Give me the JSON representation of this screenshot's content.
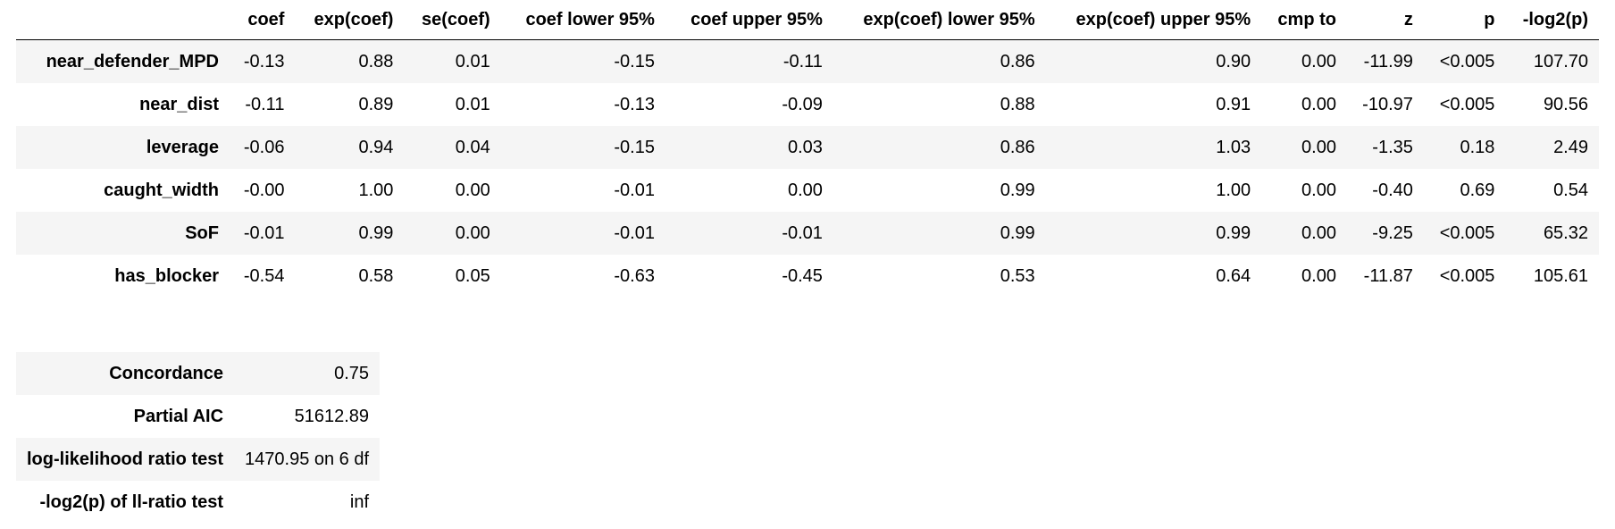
{
  "coef_table": {
    "columns": [
      "",
      "coef",
      "exp(coef)",
      "se(coef)",
      "coef lower 95%",
      "coef upper 95%",
      "exp(coef) lower 95%",
      "exp(coef) upper 95%",
      "cmp to",
      "z",
      "p",
      "-log2(p)"
    ],
    "rows": [
      {
        "name": "near_defender_MPD",
        "values": [
          "-0.13",
          "0.88",
          "0.01",
          "-0.15",
          "-0.11",
          "0.86",
          "0.90",
          "0.00",
          "-11.99",
          "<0.005",
          "107.70"
        ]
      },
      {
        "name": "near_dist",
        "values": [
          "-0.11",
          "0.89",
          "0.01",
          "-0.13",
          "-0.09",
          "0.88",
          "0.91",
          "0.00",
          "-10.97",
          "<0.005",
          "90.56"
        ]
      },
      {
        "name": "leverage",
        "values": [
          "-0.06",
          "0.94",
          "0.04",
          "-0.15",
          "0.03",
          "0.86",
          "1.03",
          "0.00",
          "-1.35",
          "0.18",
          "2.49"
        ]
      },
      {
        "name": "caught_width",
        "values": [
          "-0.00",
          "1.00",
          "0.00",
          "-0.01",
          "0.00",
          "0.99",
          "1.00",
          "0.00",
          "-0.40",
          "0.69",
          "0.54"
        ]
      },
      {
        "name": "SoF",
        "values": [
          "-0.01",
          "0.99",
          "0.00",
          "-0.01",
          "-0.01",
          "0.99",
          "0.99",
          "0.00",
          "-9.25",
          "<0.005",
          "65.32"
        ]
      },
      {
        "name": "has_blocker",
        "values": [
          "-0.54",
          "0.58",
          "0.05",
          "-0.63",
          "-0.45",
          "0.53",
          "0.64",
          "0.00",
          "-11.87",
          "<0.005",
          "105.61"
        ]
      }
    ]
  },
  "summary_table": {
    "rows": [
      {
        "label": "Concordance",
        "value": "0.75"
      },
      {
        "label": "Partial AIC",
        "value": "51612.89"
      },
      {
        "label": "log-likelihood ratio test",
        "value": "1470.95 on 6 df"
      },
      {
        "label": "-log2(p) of ll-ratio test",
        "value": "inf"
      }
    ]
  }
}
